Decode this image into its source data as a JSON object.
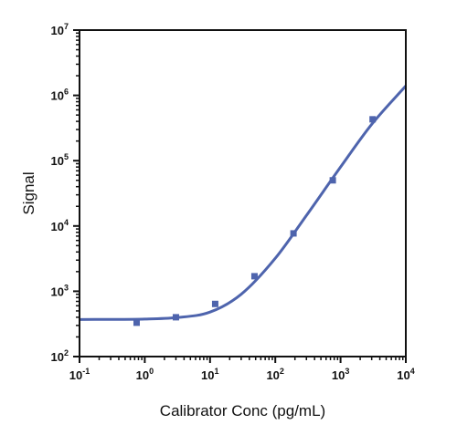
{
  "chart_data": {
    "type": "scatter",
    "xlabel": "Calibrator Conc (pg/mL)",
    "ylabel": "Signal",
    "xscale": "log",
    "yscale": "log",
    "xlim": [
      0.1,
      10000
    ],
    "ylim": [
      100,
      10000000
    ],
    "x_ticks": [
      {
        "base": "10",
        "exp": "-1"
      },
      {
        "base": "10",
        "exp": "0"
      },
      {
        "base": "10",
        "exp": "1"
      },
      {
        "base": "10",
        "exp": "2"
      },
      {
        "base": "10",
        "exp": "3"
      },
      {
        "base": "10",
        "exp": "4"
      }
    ],
    "y_ticks": [
      {
        "base": "10",
        "exp": "2"
      },
      {
        "base": "10",
        "exp": "3"
      },
      {
        "base": "10",
        "exp": "4"
      },
      {
        "base": "10",
        "exp": "5"
      },
      {
        "base": "10",
        "exp": "6"
      },
      {
        "base": "10",
        "exp": "7"
      }
    ],
    "grid": false,
    "points": [
      {
        "x": 0.75,
        "y": 330
      },
      {
        "x": 3,
        "y": 400
      },
      {
        "x": 12,
        "y": 640
      },
      {
        "x": 48,
        "y": 1700
      },
      {
        "x": 190,
        "y": 7700
      },
      {
        "x": 760,
        "y": 50000
      },
      {
        "x": 3100,
        "y": 430000
      }
    ],
    "fit_curve": [
      {
        "x": 0.1,
        "y": 370
      },
      {
        "x": 1,
        "y": 375
      },
      {
        "x": 3,
        "y": 395
      },
      {
        "x": 10,
        "y": 480
      },
      {
        "x": 30,
        "y": 900
      },
      {
        "x": 100,
        "y": 3200
      },
      {
        "x": 300,
        "y": 14500
      },
      {
        "x": 1000,
        "y": 80000
      },
      {
        "x": 3000,
        "y": 360000
      },
      {
        "x": 10000,
        "y": 1400000
      }
    ],
    "colors": {
      "series": "#4e64ad",
      "axis": "#111111"
    }
  }
}
